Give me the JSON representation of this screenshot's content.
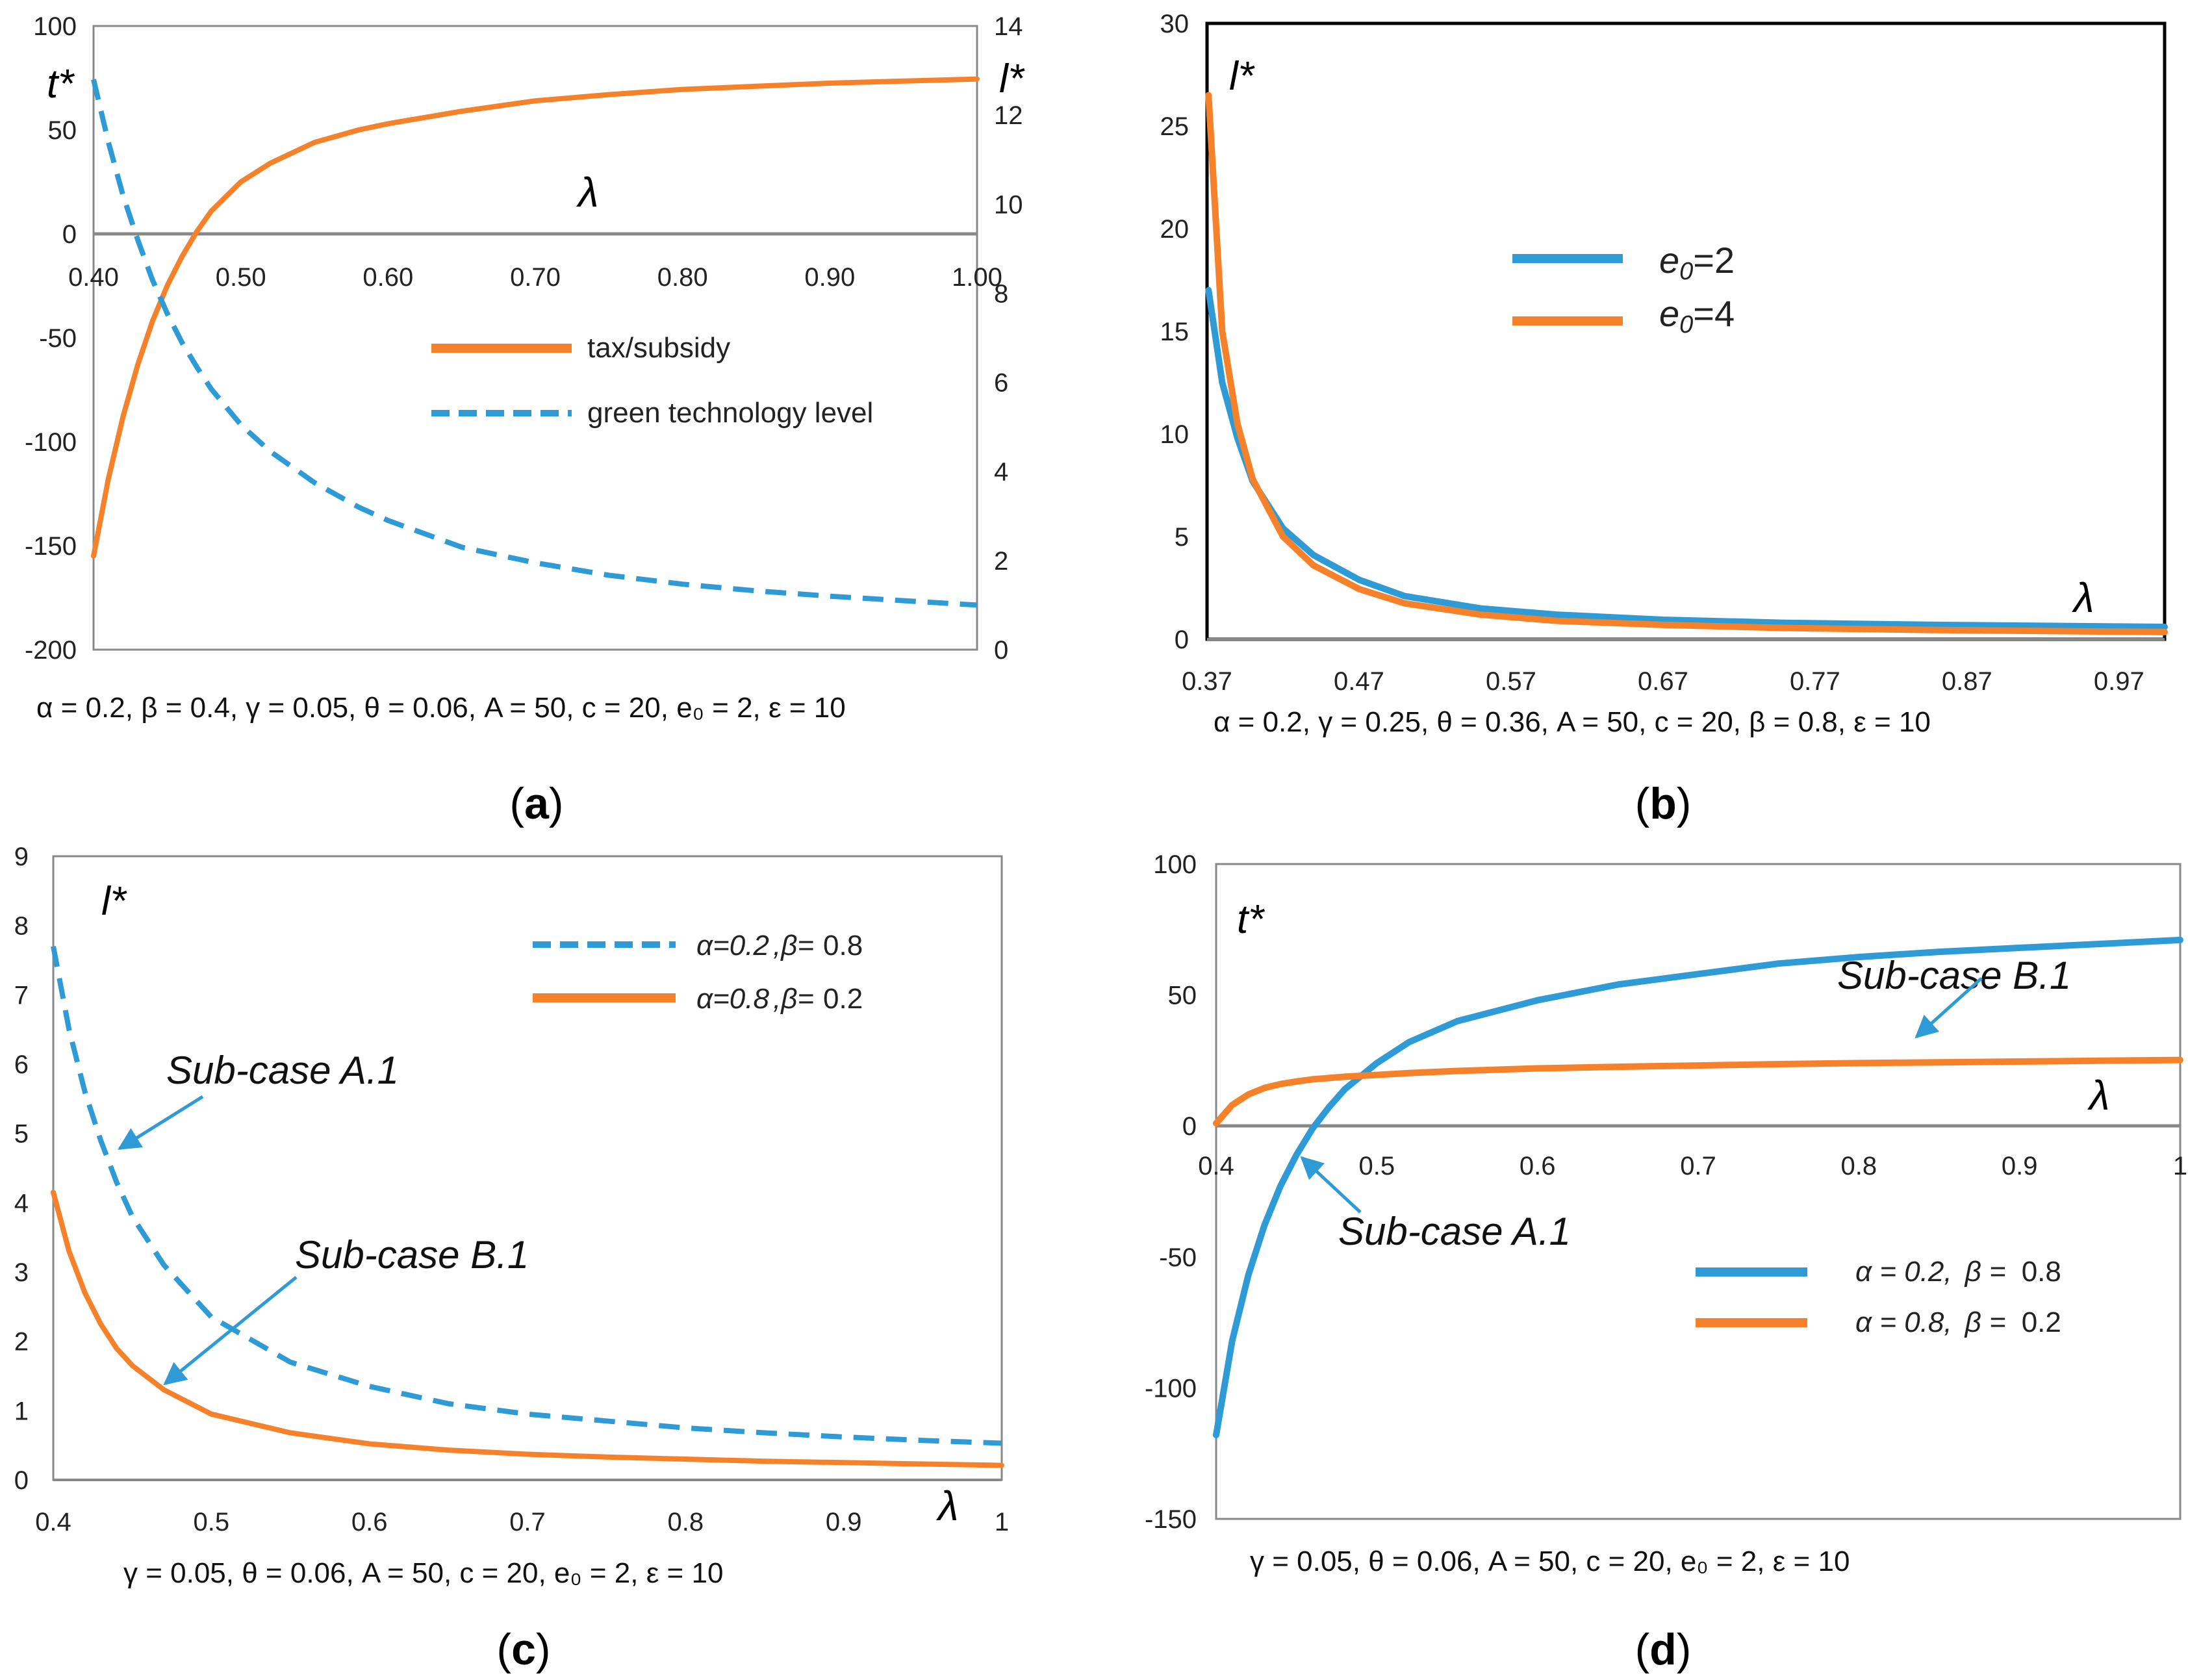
{
  "colors": {
    "blue": "#2E9BD6",
    "orange": "#F5822A",
    "axis": "#888888",
    "frame": "#000000"
  },
  "chart_data": [
    {
      "id": "a",
      "type": "line",
      "caption_pre": "(",
      "caption": "a",
      "caption_post": ")",
      "xlabel": "λ",
      "ylabel_left": "t*",
      "ylabel_right": "l*",
      "xlim": [
        0.4,
        1.0
      ],
      "ylim": [
        -200,
        100
      ],
      "y2lim": [
        0,
        14
      ],
      "x_ticks": [
        "0.40",
        "0.50",
        "0.60",
        "0.70",
        "0.80",
        "0.90",
        "1.00"
      ],
      "y_ticks": [
        "100",
        "50",
        "0",
        "-50",
        "-100",
        "-150",
        "-200"
      ],
      "y2_ticks": [
        "14",
        "12",
        "10",
        "8",
        "6",
        "4",
        "2",
        "0"
      ],
      "params": "α = 0.2, β = 0.4, γ = 0.05, θ = 0.06, A = 50, c = 20, e₀ = 2, ε = 10",
      "x": [
        0.4,
        0.41,
        0.42,
        0.43,
        0.44,
        0.45,
        0.46,
        0.47,
        0.48,
        0.5,
        0.52,
        0.55,
        0.58,
        0.6,
        0.65,
        0.7,
        0.75,
        0.8,
        0.85,
        0.9,
        0.95,
        1.0
      ],
      "series": [
        {
          "name": "tax/subsidy",
          "axis": "left",
          "style": "solid",
          "color": "orange",
          "values": [
            -155,
            -118,
            -88,
            -63,
            -42,
            -25,
            -11,
            1,
            11,
            25,
            34,
            44,
            50,
            53,
            59,
            64,
            67,
            69.5,
            71,
            72.5,
            73.5,
            74.5
          ]
        },
        {
          "name": "green technology level",
          "axis": "right",
          "style": "dashed",
          "color": "blue",
          "values": [
            12.8,
            11.4,
            10.2,
            9.2,
            8.3,
            7.55,
            6.9,
            6.35,
            5.85,
            5.05,
            4.45,
            3.75,
            3.2,
            2.9,
            2.3,
            1.95,
            1.67,
            1.47,
            1.32,
            1.2,
            1.1,
            1.0
          ]
        }
      ]
    },
    {
      "id": "b",
      "type": "line",
      "caption_pre": "(",
      "caption": "b",
      "caption_post": ")",
      "xlabel": "λ",
      "ylabel_left": "l*",
      "xlim": [
        0.37,
        1.0
      ],
      "ylim": [
        0,
        30
      ],
      "x_ticks": [
        "0.37",
        "0.47",
        "0.57",
        "0.67",
        "0.77",
        "0.87",
        "0.97"
      ],
      "y_ticks": [
        "30",
        "25",
        "20",
        "15",
        "10",
        "5",
        "0"
      ],
      "params": "α = 0.2, γ = 0.25, θ = 0.36, A = 50, c = 20, β = 0.8, ε = 10",
      "x": [
        0.371,
        0.38,
        0.39,
        0.4,
        0.42,
        0.44,
        0.47,
        0.5,
        0.55,
        0.6,
        0.67,
        0.75,
        0.85,
        1.0
      ],
      "series": [
        {
          "name": "e0=2",
          "legend_base": "e",
          "legend_sub": "0",
          "legend_rest": "=2",
          "style": "solid",
          "color": "blue",
          "values": [
            17,
            12.5,
            9.8,
            7.7,
            5.4,
            4.1,
            2.9,
            2.1,
            1.5,
            1.2,
            0.95,
            0.8,
            0.7,
            0.6
          ]
        },
        {
          "name": "e0=4",
          "legend_base": "e",
          "legend_sub": "0",
          "legend_rest": "=4",
          "style": "solid",
          "color": "orange",
          "values": [
            26.5,
            15,
            10.5,
            7.8,
            5.0,
            3.6,
            2.45,
            1.75,
            1.2,
            0.9,
            0.7,
            0.55,
            0.45,
            0.35
          ]
        }
      ]
    },
    {
      "id": "c",
      "type": "line",
      "caption_pre": "(",
      "caption": "c",
      "caption_post": ")",
      "xlabel": "λ",
      "ylabel_left": "l*",
      "xlim": [
        0.4,
        1.0
      ],
      "ylim": [
        0,
        9
      ],
      "x_ticks": [
        "0.4",
        "0.5",
        "0.6",
        "0.7",
        "0.8",
        "0.9",
        "1"
      ],
      "y_ticks": [
        "9",
        "8",
        "7",
        "6",
        "5",
        "4",
        "3",
        "2",
        "1",
        "0"
      ],
      "params": "γ = 0.05, θ = 0.06, A = 50,  c = 20,  e₀ = 2, ε = 10",
      "x": [
        0.4,
        0.41,
        0.42,
        0.43,
        0.44,
        0.45,
        0.47,
        0.5,
        0.55,
        0.6,
        0.65,
        0.7,
        0.75,
        0.8,
        0.85,
        0.9,
        0.95,
        1.0
      ],
      "series": [
        {
          "name": "α=0.2 ,β= 0.8",
          "legend_a": "α=0.2",
          "legend_b": ",β=",
          "legend_c": "0.8",
          "style": "dashed",
          "color": "blue",
          "values": [
            7.7,
            6.5,
            5.6,
            4.9,
            4.3,
            3.8,
            3.1,
            2.35,
            1.7,
            1.35,
            1.1,
            0.95,
            0.85,
            0.75,
            0.68,
            0.62,
            0.57,
            0.53
          ]
        },
        {
          "name": "α=0.8 ,β= 0.2",
          "legend_a": "α=0.8",
          "legend_b": ",β=",
          "legend_c": "0.2",
          "style": "solid",
          "color": "orange",
          "values": [
            4.15,
            3.3,
            2.7,
            2.25,
            1.9,
            1.65,
            1.3,
            0.95,
            0.68,
            0.52,
            0.43,
            0.37,
            0.33,
            0.3,
            0.27,
            0.25,
            0.23,
            0.21
          ]
        }
      ],
      "annotations": [
        "Sub-case A.1",
        "Sub-case B.1"
      ]
    },
    {
      "id": "d",
      "type": "line",
      "caption_pre": "(",
      "caption": "d",
      "caption_post": ")",
      "xlabel": "λ",
      "ylabel_left": "t*",
      "xlim": [
        0.4,
        1.0
      ],
      "ylim": [
        -150,
        100
      ],
      "x_ticks": [
        "0.4",
        "0.5",
        "0.6",
        "0.7",
        "0.8",
        "0.9",
        "1"
      ],
      "y_ticks": [
        "100",
        "50",
        "0",
        "-50",
        "-100",
        "-150"
      ],
      "params": "γ = 0.05, θ = 0.06, A = 50,  c = 20,  e₀ = 2, ε = 10",
      "x": [
        0.4,
        0.41,
        0.42,
        0.43,
        0.44,
        0.45,
        0.46,
        0.47,
        0.48,
        0.5,
        0.52,
        0.55,
        0.6,
        0.65,
        0.7,
        0.75,
        0.8,
        0.85,
        0.9,
        0.95,
        1.0
      ],
      "series": [
        {
          "name": "α = 0.2, β = 0.8",
          "legend_a": "α = 0.2,",
          "legend_b": "β =",
          "legend_c": "0.8",
          "style": "solid",
          "color": "blue",
          "values": [
            -118,
            -82,
            -57,
            -38,
            -23,
            -11,
            -1,
            7,
            14,
            24,
            32,
            40,
            48,
            54,
            58,
            62,
            64.5,
            66.5,
            68,
            69.5,
            71
          ]
        },
        {
          "name": "α = 0.8, β = 0.2",
          "legend_a": "α = 0.8,",
          "legend_b": "β =",
          "legend_c": "0.2",
          "style": "solid",
          "color": "orange",
          "values": [
            1,
            8,
            12,
            14.5,
            16,
            17,
            17.8,
            18.3,
            18.8,
            19.5,
            20.2,
            21,
            22,
            22.6,
            23.1,
            23.6,
            24,
            24.3,
            24.6,
            24.9,
            25.2
          ]
        }
      ],
      "annotations": [
        "Sub-case B.1",
        "Sub-case A.1"
      ]
    }
  ]
}
